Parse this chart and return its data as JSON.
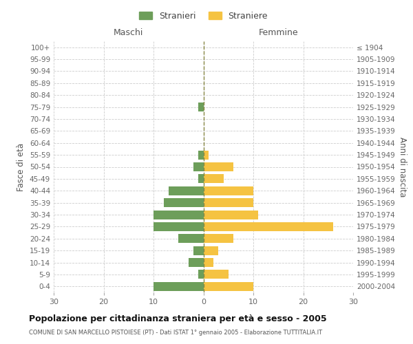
{
  "age_groups": [
    "0-4",
    "5-9",
    "10-14",
    "15-19",
    "20-24",
    "25-29",
    "30-34",
    "35-39",
    "40-44",
    "45-49",
    "50-54",
    "55-59",
    "60-64",
    "65-69",
    "70-74",
    "75-79",
    "80-84",
    "85-89",
    "90-94",
    "95-99",
    "100+"
  ],
  "birth_years": [
    "2000-2004",
    "1995-1999",
    "1990-1994",
    "1985-1989",
    "1980-1984",
    "1975-1979",
    "1970-1974",
    "1965-1969",
    "1960-1964",
    "1955-1959",
    "1950-1954",
    "1945-1949",
    "1940-1944",
    "1935-1939",
    "1930-1934",
    "1925-1929",
    "1920-1924",
    "1915-1919",
    "1910-1914",
    "1905-1909",
    "≤ 1904"
  ],
  "males": [
    10,
    1,
    3,
    2,
    5,
    10,
    10,
    8,
    7,
    1,
    2,
    1,
    0,
    0,
    0,
    1,
    0,
    0,
    0,
    0,
    0
  ],
  "females": [
    10,
    5,
    2,
    3,
    6,
    26,
    11,
    10,
    10,
    4,
    6,
    1,
    0,
    0,
    0,
    0,
    0,
    0,
    0,
    0,
    0
  ],
  "male_color": "#6d9e5a",
  "female_color": "#f5c342",
  "title": "Popolazione per cittadinanza straniera per età e sesso - 2005",
  "subtitle": "COMUNE DI SAN MARCELLO PISTOIESE (PT) - Dati ISTAT 1° gennaio 2005 - Elaborazione TUTTITALIA.IT",
  "ylabel_left": "Fasce di età",
  "ylabel_right": "Anni di nascita",
  "xlabel_left": "Maschi",
  "xlabel_right": "Femmine",
  "legend_male": "Stranieri",
  "legend_female": "Straniere",
  "xlim": 30,
  "background_color": "#ffffff",
  "grid_color": "#cccccc"
}
